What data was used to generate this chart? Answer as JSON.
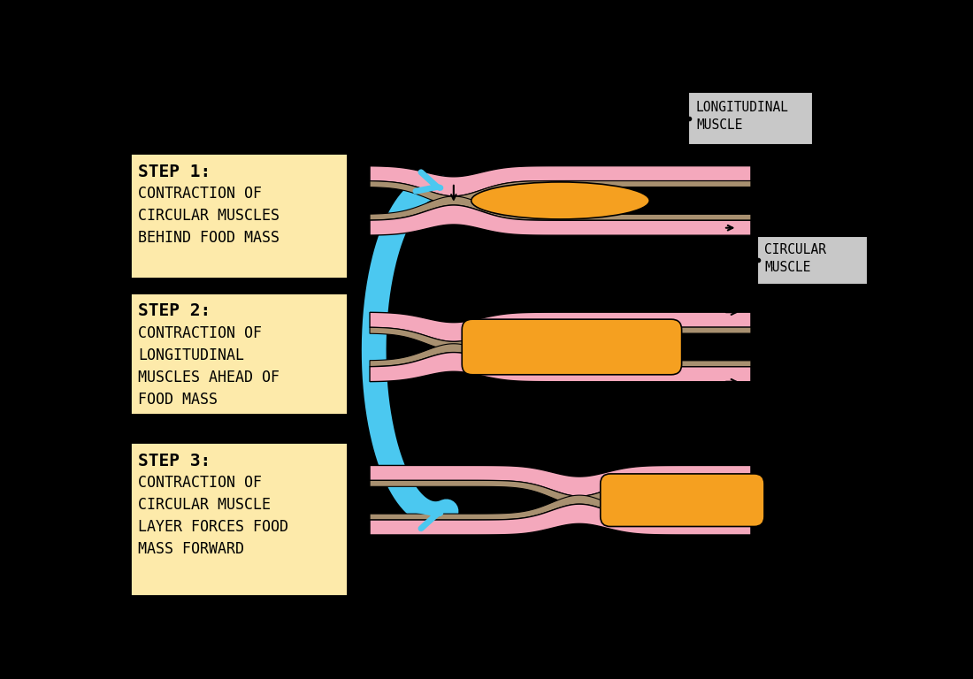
{
  "bg": "#000000",
  "cream": "#FDEAAA",
  "pink": "#F4A8BC",
  "tan": "#A89070",
  "orange": "#F5A020",
  "blue": "#4BC8F0",
  "gray": "#C8C8C8",
  "black": "#000000",
  "steps": [
    {
      "title": "STEP 1:",
      "body": "CONTRACTION OF\nCIRCULAR MUSCLES\nBEHIND FOOD MASS"
    },
    {
      "title": "STEP 2:",
      "body": "CONTRACTION OF\nLONGITUDINAL\nMUSCLES AHEAD OF\nFOOD MASS"
    },
    {
      "title": "STEP 3:",
      "body": "CONTRACTION OF\nCIRCULAR MUSCLE\nLAYER FORCES FOOD\nMASS FORWARD"
    }
  ],
  "fig_w": 11.0,
  "fig_h": 7.68,
  "dpi": 100
}
